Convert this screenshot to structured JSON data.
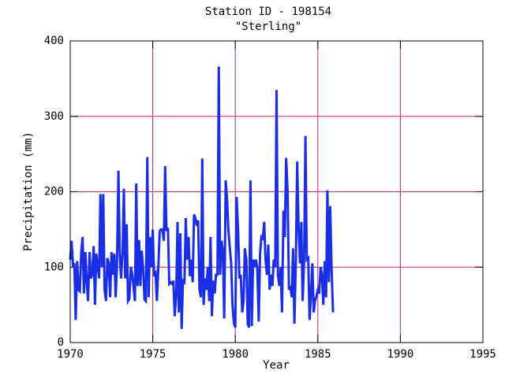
{
  "chart_data": {
    "type": "line",
    "title": "Station ID - 198154",
    "subtitle": "\"Sterling\"",
    "x_label": "Year",
    "y_label": "Precipitation (mm)",
    "xlim": [
      1970,
      1995
    ],
    "xticks": [
      1970,
      1975,
      1980,
      1985,
      1990,
      1995
    ],
    "ylim": [
      0,
      400
    ],
    "yticks": [
      0,
      100,
      200,
      300,
      400
    ],
    "grid": true,
    "grid_color": "#c0207a",
    "series": [
      {
        "color": "#1a2ee6",
        "x": [
          1970,
          1970.08,
          1970.17,
          1970.25,
          1970.33,
          1970.42,
          1970.5,
          1970.58,
          1970.67,
          1970.75,
          1970.83,
          1970.92,
          1971,
          1971.08,
          1971.17,
          1971.25,
          1971.33,
          1971.42,
          1971.5,
          1971.58,
          1971.67,
          1971.75,
          1971.83,
          1971.92,
          1972,
          1972.08,
          1972.17,
          1972.25,
          1972.33,
          1972.42,
          1972.5,
          1972.58,
          1972.67,
          1972.75,
          1972.83,
          1972.92,
          1973,
          1973.08,
          1973.17,
          1973.25,
          1973.33,
          1973.42,
          1973.5,
          1973.58,
          1973.67,
          1973.75,
          1973.83,
          1973.92,
          1974,
          1974.08,
          1974.17,
          1974.25,
          1974.33,
          1974.42,
          1974.5,
          1974.58,
          1974.67,
          1974.75,
          1974.83,
          1974.92,
          1975,
          1975.08,
          1975.17,
          1975.25,
          1975.33,
          1975.42,
          1975.5,
          1975.58,
          1975.67,
          1975.75,
          1975.83,
          1975.92,
          1976,
          1976.08,
          1976.17,
          1976.25,
          1976.33,
          1976.42,
          1976.5,
          1976.58,
          1976.67,
          1976.75,
          1976.83,
          1976.92,
          1977,
          1977.08,
          1977.17,
          1977.25,
          1977.33,
          1977.42,
          1977.5,
          1977.58,
          1977.67,
          1977.75,
          1977.83,
          1977.92,
          1978,
          1978.08,
          1978.17,
          1978.25,
          1978.33,
          1978.42,
          1978.5,
          1978.58,
          1978.67,
          1978.75,
          1978.83,
          1978.92,
          1979,
          1979.08,
          1979.17,
          1979.25,
          1979.33,
          1979.42,
          1979.5,
          1979.58,
          1979.67,
          1979.75,
          1979.83,
          1979.92,
          1980,
          1980.08,
          1980.17,
          1980.25,
          1980.33,
          1980.42,
          1980.5,
          1980.58,
          1980.67,
          1980.75,
          1980.83,
          1980.92,
          1981,
          1981.08,
          1981.17,
          1981.25,
          1981.33,
          1981.42,
          1981.5,
          1981.58,
          1981.67,
          1981.75,
          1981.83,
          1981.92,
          1982,
          1982.08,
          1982.17,
          1982.25,
          1982.33,
          1982.42,
          1982.5,
          1982.58,
          1982.67,
          1982.75,
          1982.83,
          1982.92,
          1983,
          1983.08,
          1983.17,
          1983.25,
          1983.33,
          1983.42,
          1983.5,
          1983.58,
          1983.67,
          1983.75,
          1983.83,
          1983.92,
          1984,
          1984.08,
          1984.17,
          1984.25,
          1984.33,
          1984.42,
          1984.5,
          1984.58,
          1984.67,
          1984.75,
          1984.83,
          1984.92,
          1985,
          1985.08,
          1985.17,
          1985.25,
          1985.33,
          1985.42,
          1985.5,
          1985.58,
          1985.67,
          1985.75,
          1985.83,
          1985.92
        ],
        "values": [
          110,
          135,
          100,
          105,
          30,
          108,
          70,
          68,
          120,
          140,
          65,
          120,
          80,
          55,
          120,
          85,
          90,
          128,
          50,
          118,
          100,
          85,
          197,
          100,
          197,
          70,
          55,
          112,
          105,
          60,
          120,
          90,
          118,
          60,
          100,
          228,
          118,
          85,
          120,
          204,
          85,
          157,
          55,
          58,
          100,
          92,
          75,
          55,
          211,
          75,
          136,
          75,
          122,
          98,
          57,
          55,
          246,
          60,
          140,
          100,
          150,
          88,
          92,
          55,
          95,
          148,
          150,
          150,
          135,
          234,
          148,
          152,
          78,
          80,
          78,
          82,
          35,
          62,
          160,
          40,
          145,
          18,
          82,
          80,
          165,
          110,
          140,
          88,
          110,
          80,
          170,
          165,
          155,
          162,
          70,
          60,
          244,
          50,
          85,
          70,
          100,
          55,
          140,
          35,
          82,
          65,
          90,
          90,
          366,
          90,
          135,
          120,
          32,
          215,
          190,
          150,
          125,
          105,
          50,
          25,
          20,
          193,
          148,
          85,
          90,
          40,
          55,
          125,
          110,
          25,
          20,
          215,
          22,
          110,
          100,
          110,
          100,
          28,
          118,
          140,
          138,
          160,
          110,
          90,
          130,
          70,
          90,
          75,
          110,
          100,
          335,
          90,
          75,
          100,
          40,
          175,
          140,
          245,
          200,
          70,
          75,
          60,
          125,
          25,
          110,
          240,
          155,
          105,
          160,
          55,
          110,
          274,
          110,
          112,
          30,
          60,
          105,
          40,
          55,
          62,
          70,
          65,
          100,
          90,
          50,
          108,
          60,
          202,
          80,
          181,
          100,
          40
        ]
      }
    ]
  }
}
